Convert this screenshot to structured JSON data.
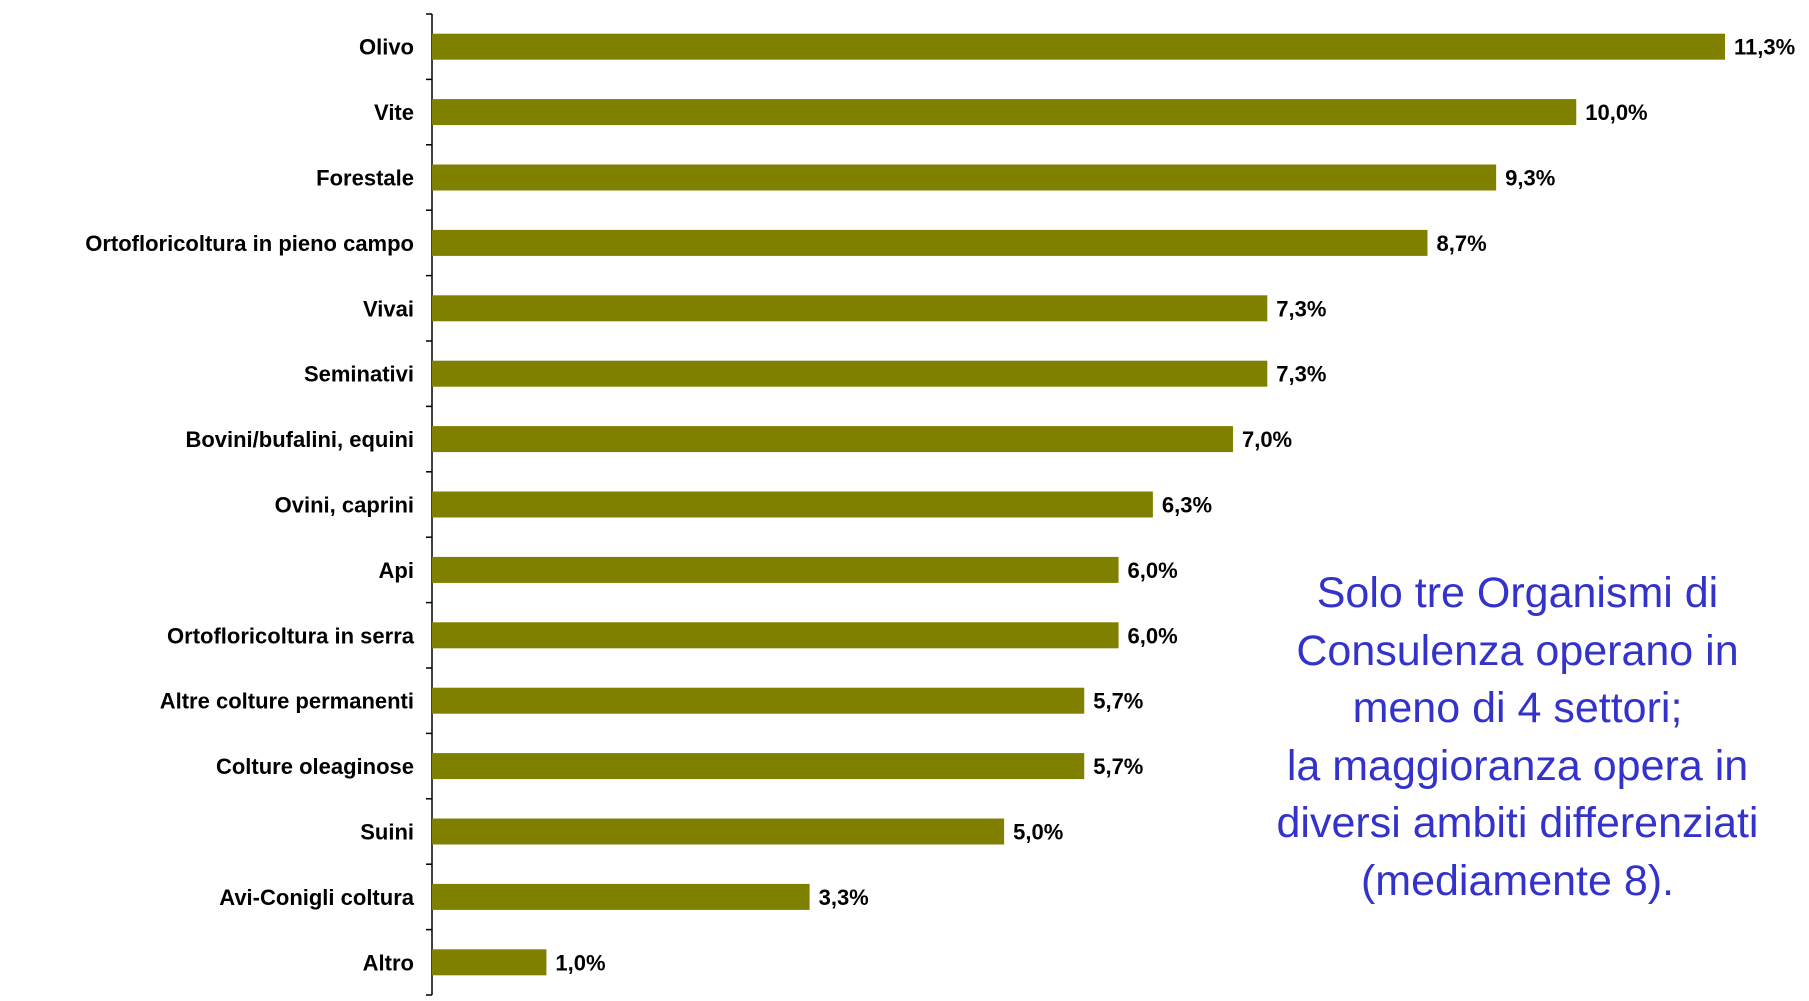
{
  "chart_data": {
    "type": "bar",
    "orientation": "horizontal",
    "categories": [
      "Olivo",
      "Vite",
      "Forestale",
      "Ortofloricoltura in pieno campo",
      "Vivai",
      "Seminativi",
      "Bovini/bufalini, equini",
      "Ovini, caprini",
      "Api",
      "Ortofloricoltura in serra",
      "Altre colture permanenti",
      "Colture oleaginose",
      "Suini",
      "Avi-Conigli coltura",
      "Altro"
    ],
    "values": [
      11.3,
      10.0,
      9.3,
      8.7,
      7.3,
      7.3,
      7.0,
      6.3,
      6.0,
      6.0,
      5.7,
      5.7,
      5.0,
      3.3,
      1.0
    ],
    "value_labels": [
      "11,3%",
      "10,0%",
      "9,3%",
      "8,7%",
      "7,3%",
      "7,3%",
      "7,0%",
      "6,3%",
      "6,0%",
      "6,0%",
      "5,7%",
      "5,7%",
      "5,0%",
      "3,3%",
      "1,0%"
    ],
    "unit": "%",
    "xlim": [
      0,
      11.3
    ],
    "bar_color": "#808000",
    "grid": false,
    "legend": "none"
  },
  "annotation": {
    "lines": [
      "Solo tre Organismi di",
      "Consulenza operano in",
      "meno di 4 settori;",
      "la maggioranza opera in",
      "diversi ambiti differenziati",
      "(mediamente 8)."
    ],
    "color": "#3333cc"
  }
}
